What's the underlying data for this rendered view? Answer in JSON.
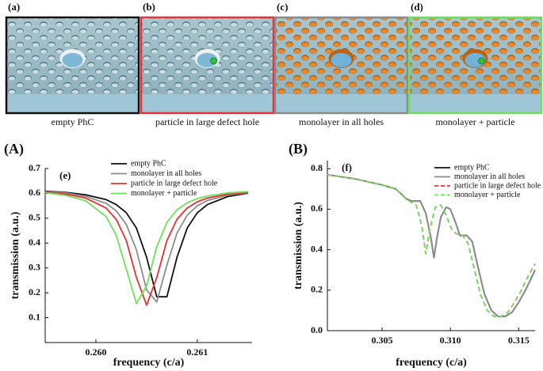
{
  "panels": [
    {
      "label": "(a)",
      "caption": "empty PhC"
    },
    {
      "label": "(b)",
      "caption": "particle in large defect hole"
    },
    {
      "label": "(c)",
      "caption": "monolayer in all holes"
    },
    {
      "label": "(d)",
      "caption": "monolayer + particle"
    }
  ],
  "chart_data": [
    {
      "type": "line",
      "panel_label": "(A)",
      "annotation": "(e)",
      "xlabel": "frequency (c/a)",
      "ylabel": "transmission (a.u.)",
      "xlim": [
        0.2595,
        0.26154
      ],
      "ylim": [
        0,
        0.7
      ],
      "xticks": [
        {
          "value": 0.26,
          "label": "0.260"
        },
        {
          "value": 0.261,
          "label": "0.261"
        }
      ],
      "yticks": [
        0.1,
        0.2,
        0.3,
        0.4,
        0.5,
        0.6,
        0.7
      ],
      "legend": "upper right",
      "x": [
        0.2595,
        0.2597,
        0.2599,
        0.2601,
        0.2602,
        0.2603,
        0.2604,
        0.2605,
        0.2606,
        0.2607,
        0.2608,
        0.2609,
        0.261,
        0.2611,
        0.2613,
        0.2615
      ],
      "series": [
        {
          "name": "empty PhC",
          "color": "#111111",
          "linestyle": "solid",
          "values": [
            0.609,
            0.604,
            0.594,
            0.575,
            0.555,
            0.522,
            0.46,
            0.343,
            0.184,
            0.184,
            0.343,
            0.46,
            0.522,
            0.555,
            0.587,
            0.601
          ]
        },
        {
          "name": "monolayer in all holes",
          "color": "#8c8c8c",
          "linestyle": "solid",
          "values": [
            0.607,
            0.602,
            0.588,
            0.56,
            0.53,
            0.475,
            0.372,
            0.212,
            0.163,
            0.311,
            0.441,
            0.512,
            0.55,
            0.571,
            0.593,
            0.603
          ]
        },
        {
          "name": "particle in large defect hole",
          "color": "#e8302f",
          "linestyle": "solid",
          "values": [
            0.605,
            0.597,
            0.581,
            0.541,
            0.496,
            0.41,
            0.261,
            0.15,
            0.261,
            0.41,
            0.496,
            0.541,
            0.566,
            0.581,
            0.597,
            0.605
          ]
        },
        {
          "name": "monolayer + particle",
          "color": "#6fe05a",
          "linestyle": "solid",
          "values": [
            0.603,
            0.592,
            0.57,
            0.507,
            0.432,
            0.295,
            0.156,
            0.228,
            0.385,
            0.483,
            0.534,
            0.562,
            0.579,
            0.589,
            0.602,
            0.607
          ]
        }
      ]
    },
    {
      "type": "line",
      "panel_label": "(B)",
      "annotation": "(f)",
      "xlabel": "frequency (c/a)",
      "ylabel": "transmission (a.u.)",
      "xlim": [
        0.301,
        0.3162
      ],
      "ylim": [
        0,
        0.84
      ],
      "xticks": [
        {
          "value": 0.305,
          "label": "0.305"
        },
        {
          "value": 0.31,
          "label": "0.310"
        },
        {
          "value": 0.315,
          "label": "0.315"
        }
      ],
      "yticks": [
        {
          "value": 0,
          "label": "0.0"
        },
        0.2,
        0.4,
        0.6,
        0.8
      ],
      "legend": "upper right",
      "series": [
        {
          "name": "empty PhC",
          "color": "#111111",
          "linestyle": "solid",
          "x": [
            0.301,
            0.303,
            0.305,
            0.306,
            0.3068,
            0.3072,
            0.3078,
            0.3082,
            0.3086,
            0.3088,
            0.309,
            0.3093,
            0.3097,
            0.31,
            0.3104,
            0.3107,
            0.3112,
            0.3116,
            0.312,
            0.3125,
            0.313,
            0.3135,
            0.314,
            0.3145,
            0.315,
            0.3155,
            0.316,
            0.3162
          ],
          "values": [
            0.77,
            0.75,
            0.72,
            0.7,
            0.65,
            0.64,
            0.64,
            0.58,
            0.45,
            0.36,
            0.45,
            0.56,
            0.61,
            0.6,
            0.53,
            0.47,
            0.47,
            0.44,
            0.32,
            0.18,
            0.1,
            0.07,
            0.07,
            0.09,
            0.14,
            0.2,
            0.27,
            0.3
          ]
        },
        {
          "name": "monolayer in all holes",
          "color": "#8c8c8c",
          "linestyle": "solid",
          "x": [
            0.301,
            0.303,
            0.305,
            0.306,
            0.3068,
            0.3072,
            0.3078,
            0.3082,
            0.3086,
            0.3088,
            0.309,
            0.3093,
            0.3097,
            0.31,
            0.3104,
            0.3107,
            0.3112,
            0.3116,
            0.312,
            0.3125,
            0.313,
            0.3135,
            0.314,
            0.3145,
            0.315,
            0.3155,
            0.316,
            0.3162
          ],
          "values": [
            0.77,
            0.75,
            0.72,
            0.7,
            0.65,
            0.64,
            0.64,
            0.58,
            0.45,
            0.36,
            0.45,
            0.56,
            0.61,
            0.6,
            0.53,
            0.47,
            0.47,
            0.44,
            0.32,
            0.18,
            0.1,
            0.07,
            0.07,
            0.09,
            0.14,
            0.2,
            0.27,
            0.3
          ]
        },
        {
          "name": "particle in large defect hole",
          "color": "#e8302f",
          "linestyle": "dashed",
          "x": [
            0.301,
            0.303,
            0.305,
            0.306,
            0.3066,
            0.307,
            0.3075,
            0.3079,
            0.3082,
            0.3085,
            0.3089,
            0.3093,
            0.3097,
            0.3101,
            0.3104,
            0.3109,
            0.3113,
            0.3117,
            0.3122,
            0.3127,
            0.3132,
            0.3137,
            0.3142,
            0.3147,
            0.3152,
            0.3157,
            0.3162
          ],
          "values": [
            0.77,
            0.75,
            0.72,
            0.7,
            0.66,
            0.64,
            0.62,
            0.52,
            0.38,
            0.5,
            0.61,
            0.62,
            0.57,
            0.5,
            0.48,
            0.47,
            0.43,
            0.32,
            0.18,
            0.1,
            0.07,
            0.07,
            0.09,
            0.14,
            0.2,
            0.27,
            0.33
          ]
        },
        {
          "name": "monolayer + particle",
          "color": "#6fe05a",
          "linestyle": "dashed",
          "x": [
            0.301,
            0.303,
            0.305,
            0.306,
            0.3066,
            0.307,
            0.3075,
            0.3079,
            0.3082,
            0.3085,
            0.3089,
            0.3093,
            0.3097,
            0.3101,
            0.3104,
            0.3109,
            0.3113,
            0.3117,
            0.3122,
            0.3127,
            0.3132,
            0.3137,
            0.3142,
            0.3147,
            0.3152,
            0.3157,
            0.3162
          ],
          "values": [
            0.77,
            0.75,
            0.72,
            0.7,
            0.66,
            0.64,
            0.62,
            0.52,
            0.38,
            0.5,
            0.61,
            0.62,
            0.57,
            0.5,
            0.48,
            0.47,
            0.43,
            0.32,
            0.18,
            0.1,
            0.07,
            0.07,
            0.09,
            0.14,
            0.2,
            0.27,
            0.33
          ]
        }
      ]
    }
  ]
}
